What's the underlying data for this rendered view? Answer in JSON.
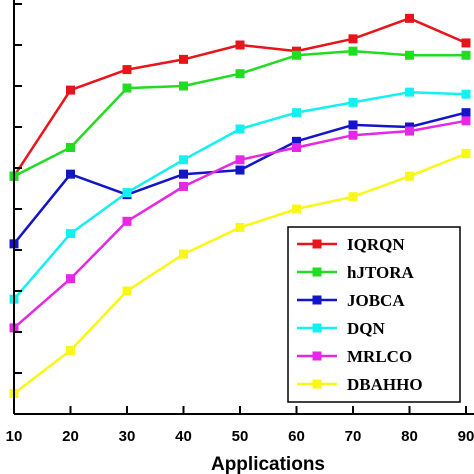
{
  "chart_data": {
    "type": "line",
    "title": "",
    "xlabel": "Applications",
    "ylabel": "",
    "x": [
      10,
      20,
      30,
      40,
      50,
      60,
      70,
      80,
      90
    ],
    "xticks": [
      "10",
      "20",
      "30",
      "40",
      "50",
      "60",
      "70",
      "80",
      "90"
    ],
    "xlim": [
      10,
      90
    ],
    "ylim": [
      0,
      10
    ],
    "yticks": [
      0,
      1,
      2,
      3,
      4,
      5,
      6,
      7,
      8,
      9,
      10
    ],
    "ytick_labels_visible": false,
    "grid": false,
    "legend": "bottom-right",
    "series": [
      {
        "name": "IQRQN",
        "color": "#e8141c",
        "marker": "square",
        "values": [
          5.8,
          7.9,
          8.4,
          8.65,
          9.0,
          8.85,
          9.15,
          9.65,
          9.05
        ]
      },
      {
        "name": "hJTORA",
        "color": "#22dc22",
        "marker": "square",
        "values": [
          5.8,
          6.5,
          7.95,
          8.0,
          8.3,
          8.75,
          8.85,
          8.75,
          8.75
        ]
      },
      {
        "name": "JOBCA",
        "color": "#1414c8",
        "marker": "square",
        "values": [
          4.15,
          5.85,
          5.35,
          5.85,
          5.95,
          6.65,
          7.05,
          7.0,
          7.35
        ]
      },
      {
        "name": "DQN",
        "color": "#14f0f0",
        "marker": "square",
        "values": [
          2.8,
          4.4,
          5.4,
          6.2,
          6.95,
          7.35,
          7.6,
          7.85,
          7.8
        ]
      },
      {
        "name": "MRLCO",
        "color": "#e628e6",
        "marker": "square",
        "values": [
          2.1,
          3.3,
          4.7,
          5.55,
          6.2,
          6.5,
          6.8,
          6.9,
          7.15
        ]
      },
      {
        "name": "DBAHHO",
        "color": "#f8f814",
        "marker": "square",
        "values": [
          0.5,
          1.55,
          3.0,
          3.9,
          4.55,
          5.0,
          5.3,
          5.8,
          6.35
        ]
      }
    ]
  }
}
